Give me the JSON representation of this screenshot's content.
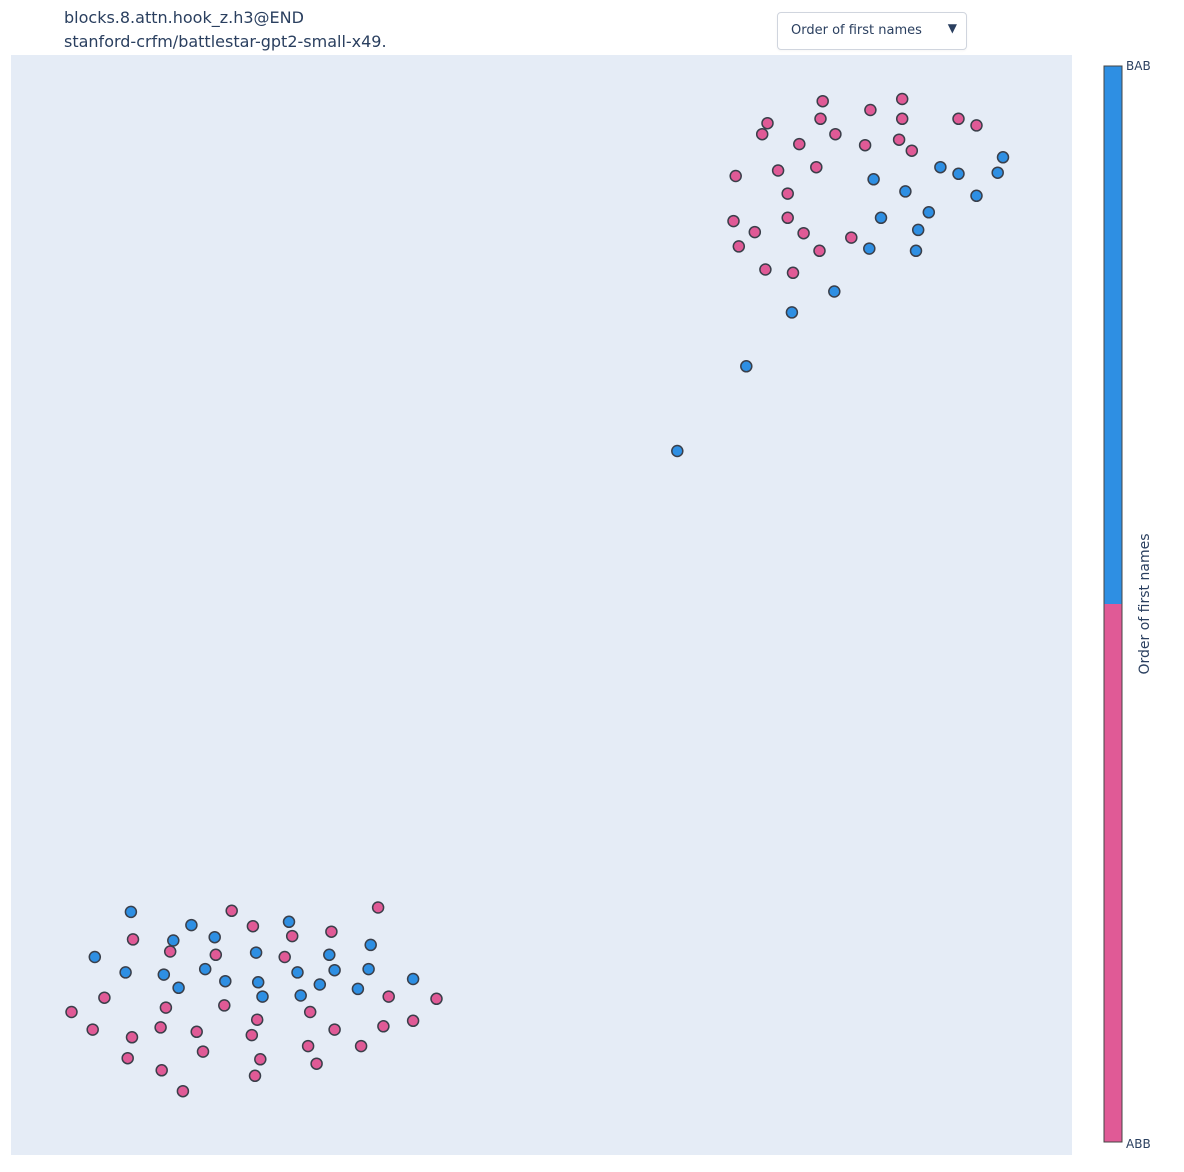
{
  "header": {
    "title_line1": "blocks.8.attn.hook_z.h3@END",
    "title_line2": "stanford-crfm/battlestar-gpt2-small-x49."
  },
  "dropdown": {
    "selected": "Order of first names",
    "arrow_icon": "triangle-down-icon"
  },
  "colors": {
    "plot_bg": "#e5ecf6",
    "BAB": "#2e8fe3",
    "ABB": "#e05a96",
    "marker_outline": "#3a3f4a"
  },
  "chart_data": {
    "type": "scatter",
    "xlim": [
      0,
      1
    ],
    "ylim": [
      0,
      1
    ],
    "grid": false,
    "colorbar": {
      "title": "Order of first names",
      "top_label": "BAB",
      "bottom_label": "ABB",
      "categories": [
        "ABB",
        "BAB"
      ]
    },
    "points": [
      {
        "x": 0.713,
        "y": 0.938,
        "c": "ABB"
      },
      {
        "x": 0.765,
        "y": 0.958,
        "c": "ABB"
      },
      {
        "x": 0.84,
        "y": 0.96,
        "c": "ABB"
      },
      {
        "x": 0.81,
        "y": 0.95,
        "c": "ABB"
      },
      {
        "x": 0.763,
        "y": 0.942,
        "c": "ABB"
      },
      {
        "x": 0.84,
        "y": 0.942,
        "c": "ABB"
      },
      {
        "x": 0.708,
        "y": 0.928,
        "c": "ABB"
      },
      {
        "x": 0.777,
        "y": 0.928,
        "c": "ABB"
      },
      {
        "x": 0.837,
        "y": 0.923,
        "c": "ABB"
      },
      {
        "x": 0.743,
        "y": 0.919,
        "c": "ABB"
      },
      {
        "x": 0.805,
        "y": 0.918,
        "c": "ABB"
      },
      {
        "x": 0.849,
        "y": 0.913,
        "c": "ABB"
      },
      {
        "x": 0.893,
        "y": 0.942,
        "c": "ABB"
      },
      {
        "x": 0.91,
        "y": 0.936,
        "c": "ABB"
      },
      {
        "x": 0.723,
        "y": 0.895,
        "c": "ABB"
      },
      {
        "x": 0.759,
        "y": 0.898,
        "c": "ABB"
      },
      {
        "x": 0.683,
        "y": 0.89,
        "c": "ABB"
      },
      {
        "x": 0.732,
        "y": 0.874,
        "c": "ABB"
      },
      {
        "x": 0.732,
        "y": 0.852,
        "c": "ABB"
      },
      {
        "x": 0.681,
        "y": 0.849,
        "c": "ABB"
      },
      {
        "x": 0.701,
        "y": 0.839,
        "c": "ABB"
      },
      {
        "x": 0.747,
        "y": 0.838,
        "c": "ABB"
      },
      {
        "x": 0.686,
        "y": 0.826,
        "c": "ABB"
      },
      {
        "x": 0.792,
        "y": 0.834,
        "c": "ABB"
      },
      {
        "x": 0.762,
        "y": 0.822,
        "c": "ABB"
      },
      {
        "x": 0.711,
        "y": 0.805,
        "c": "ABB"
      },
      {
        "x": 0.737,
        "y": 0.802,
        "c": "ABB"
      },
      {
        "x": 0.876,
        "y": 0.898,
        "c": "BAB"
      },
      {
        "x": 0.935,
        "y": 0.907,
        "c": "BAB"
      },
      {
        "x": 0.893,
        "y": 0.892,
        "c": "BAB"
      },
      {
        "x": 0.93,
        "y": 0.893,
        "c": "BAB"
      },
      {
        "x": 0.813,
        "y": 0.887,
        "c": "BAB"
      },
      {
        "x": 0.843,
        "y": 0.876,
        "c": "BAB"
      },
      {
        "x": 0.91,
        "y": 0.872,
        "c": "BAB"
      },
      {
        "x": 0.865,
        "y": 0.857,
        "c": "BAB"
      },
      {
        "x": 0.82,
        "y": 0.852,
        "c": "BAB"
      },
      {
        "x": 0.855,
        "y": 0.841,
        "c": "BAB"
      },
      {
        "x": 0.809,
        "y": 0.824,
        "c": "BAB"
      },
      {
        "x": 0.853,
        "y": 0.822,
        "c": "BAB"
      },
      {
        "x": 0.776,
        "y": 0.785,
        "c": "BAB"
      },
      {
        "x": 0.736,
        "y": 0.766,
        "c": "BAB"
      },
      {
        "x": 0.693,
        "y": 0.717,
        "c": "BAB"
      },
      {
        "x": 0.628,
        "y": 0.64,
        "c": "BAB"
      },
      {
        "x": 0.113,
        "y": 0.221,
        "c": "BAB"
      },
      {
        "x": 0.17,
        "y": 0.209,
        "c": "BAB"
      },
      {
        "x": 0.262,
        "y": 0.212,
        "c": "BAB"
      },
      {
        "x": 0.153,
        "y": 0.195,
        "c": "BAB"
      },
      {
        "x": 0.192,
        "y": 0.198,
        "c": "BAB"
      },
      {
        "x": 0.339,
        "y": 0.191,
        "c": "BAB"
      },
      {
        "x": 0.079,
        "y": 0.18,
        "c": "BAB"
      },
      {
        "x": 0.231,
        "y": 0.184,
        "c": "BAB"
      },
      {
        "x": 0.3,
        "y": 0.182,
        "c": "BAB"
      },
      {
        "x": 0.108,
        "y": 0.166,
        "c": "BAB"
      },
      {
        "x": 0.144,
        "y": 0.164,
        "c": "BAB"
      },
      {
        "x": 0.183,
        "y": 0.169,
        "c": "BAB"
      },
      {
        "x": 0.27,
        "y": 0.166,
        "c": "BAB"
      },
      {
        "x": 0.305,
        "y": 0.168,
        "c": "BAB"
      },
      {
        "x": 0.337,
        "y": 0.169,
        "c": "BAB"
      },
      {
        "x": 0.202,
        "y": 0.158,
        "c": "BAB"
      },
      {
        "x": 0.233,
        "y": 0.157,
        "c": "BAB"
      },
      {
        "x": 0.291,
        "y": 0.155,
        "c": "BAB"
      },
      {
        "x": 0.379,
        "y": 0.16,
        "c": "BAB"
      },
      {
        "x": 0.158,
        "y": 0.152,
        "c": "BAB"
      },
      {
        "x": 0.237,
        "y": 0.144,
        "c": "BAB"
      },
      {
        "x": 0.273,
        "y": 0.145,
        "c": "BAB"
      },
      {
        "x": 0.327,
        "y": 0.151,
        "c": "BAB"
      },
      {
        "x": 0.346,
        "y": 0.225,
        "c": "ABB"
      },
      {
        "x": 0.208,
        "y": 0.222,
        "c": "ABB"
      },
      {
        "x": 0.228,
        "y": 0.208,
        "c": "ABB"
      },
      {
        "x": 0.302,
        "y": 0.203,
        "c": "ABB"
      },
      {
        "x": 0.115,
        "y": 0.196,
        "c": "ABB"
      },
      {
        "x": 0.265,
        "y": 0.199,
        "c": "ABB"
      },
      {
        "x": 0.15,
        "y": 0.185,
        "c": "ABB"
      },
      {
        "x": 0.193,
        "y": 0.182,
        "c": "ABB"
      },
      {
        "x": 0.258,
        "y": 0.18,
        "c": "ABB"
      },
      {
        "x": 0.088,
        "y": 0.143,
        "c": "ABB"
      },
      {
        "x": 0.356,
        "y": 0.144,
        "c": "ABB"
      },
      {
        "x": 0.401,
        "y": 0.142,
        "c": "ABB"
      },
      {
        "x": 0.146,
        "y": 0.134,
        "c": "ABB"
      },
      {
        "x": 0.201,
        "y": 0.136,
        "c": "ABB"
      },
      {
        "x": 0.282,
        "y": 0.13,
        "c": "ABB"
      },
      {
        "x": 0.057,
        "y": 0.13,
        "c": "ABB"
      },
      {
        "x": 0.232,
        "y": 0.123,
        "c": "ABB"
      },
      {
        "x": 0.141,
        "y": 0.116,
        "c": "ABB"
      },
      {
        "x": 0.351,
        "y": 0.117,
        "c": "ABB"
      },
      {
        "x": 0.379,
        "y": 0.122,
        "c": "ABB"
      },
      {
        "x": 0.077,
        "y": 0.114,
        "c": "ABB"
      },
      {
        "x": 0.175,
        "y": 0.112,
        "c": "ABB"
      },
      {
        "x": 0.227,
        "y": 0.109,
        "c": "ABB"
      },
      {
        "x": 0.114,
        "y": 0.107,
        "c": "ABB"
      },
      {
        "x": 0.305,
        "y": 0.114,
        "c": "ABB"
      },
      {
        "x": 0.181,
        "y": 0.094,
        "c": "ABB"
      },
      {
        "x": 0.28,
        "y": 0.099,
        "c": "ABB"
      },
      {
        "x": 0.33,
        "y": 0.099,
        "c": "ABB"
      },
      {
        "x": 0.11,
        "y": 0.088,
        "c": "ABB"
      },
      {
        "x": 0.235,
        "y": 0.087,
        "c": "ABB"
      },
      {
        "x": 0.288,
        "y": 0.083,
        "c": "ABB"
      },
      {
        "x": 0.142,
        "y": 0.077,
        "c": "ABB"
      },
      {
        "x": 0.23,
        "y": 0.072,
        "c": "ABB"
      },
      {
        "x": 0.162,
        "y": 0.058,
        "c": "ABB"
      }
    ]
  }
}
